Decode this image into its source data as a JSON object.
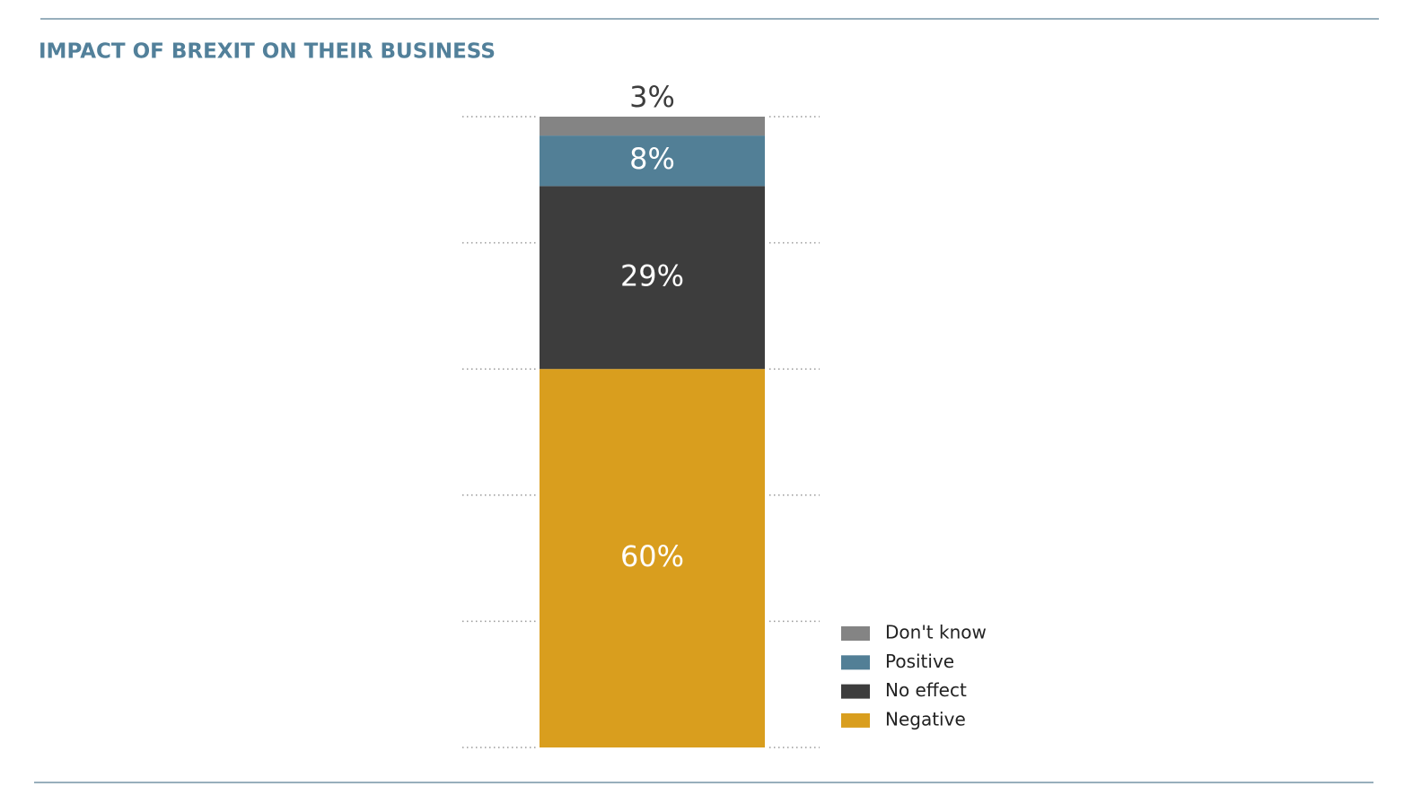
{
  "chart_data": {
    "type": "stacked_bar",
    "title": "IMPACT OF BREXIT ON THEIR BUSINESS",
    "categories": [
      null
    ],
    "series": [
      {
        "name": "Negative",
        "color": "#d99e1e",
        "values": [
          60
        ],
        "value_labels": [
          "60%"
        ]
      },
      {
        "name": "No effect",
        "color": "#3d3d3d",
        "values": [
          29
        ],
        "value_labels": [
          "29%"
        ]
      },
      {
        "name": "Positive",
        "color": "#527f96",
        "values": [
          8
        ],
        "value_labels": [
          "8%"
        ]
      },
      {
        "name": "Don't know",
        "color": "#848484",
        "values": [
          3
        ],
        "value_labels": [
          "3%"
        ]
      }
    ],
    "ylim": [
      0,
      100
    ],
    "yticks": [
      0,
      20,
      40,
      60,
      80,
      100
    ],
    "grid": true,
    "legend": "right"
  }
}
